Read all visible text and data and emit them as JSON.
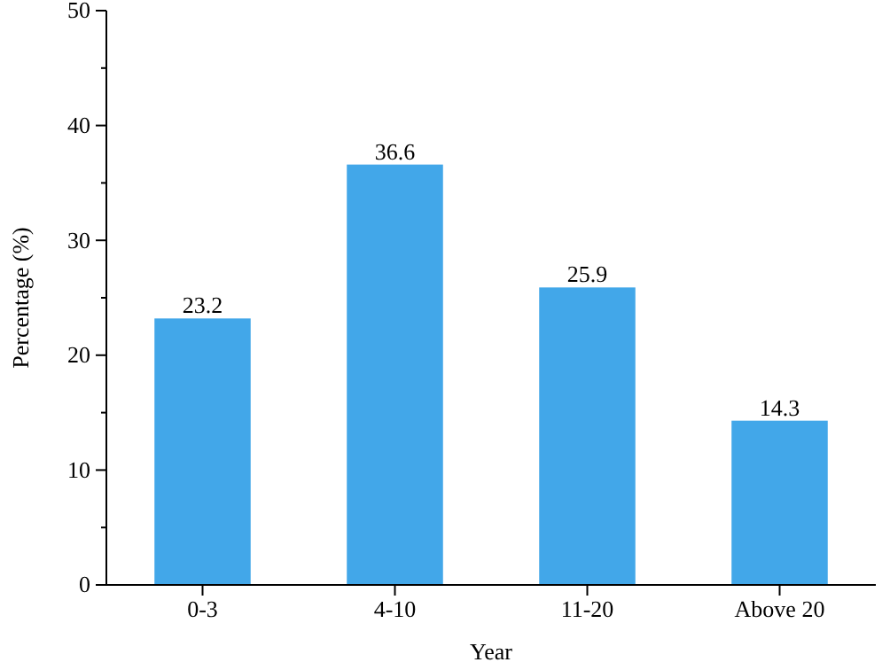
{
  "chart_data": {
    "type": "bar",
    "categories": [
      "0-3",
      "4-10",
      "11-20",
      "Above 20"
    ],
    "values": [
      23.2,
      36.6,
      25.9,
      14.3
    ],
    "color": "#42a7e9",
    "xlabel": "Year",
    "ylabel": "Percentage (%)",
    "ylim": [
      0,
      50
    ],
    "yticks": [
      0,
      {
        "value": 5,
        "label": null
      },
      10,
      {
        "value": 15,
        "label": null
      },
      20,
      {
        "value": 25,
        "label": null
      },
      30,
      {
        "value": 35,
        "label": null
      },
      40,
      {
        "value": 45,
        "label": null
      },
      50
    ],
    "data_labels": true
  }
}
